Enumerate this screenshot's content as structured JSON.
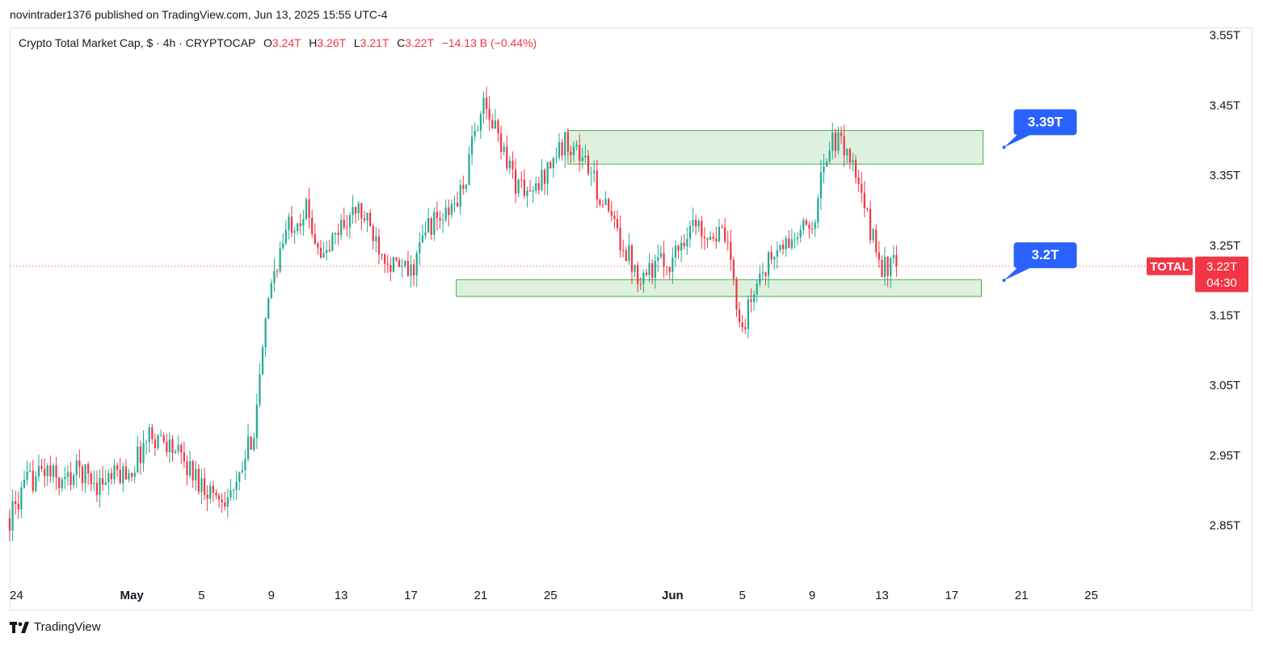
{
  "publisher_line": "novintrader1376 published on TradingView.com, Jun 13, 2025 15:55 UTC-4",
  "legend": {
    "symbol": "Crypto Total Market Cap, $ · 4h · CRYPTOCAP",
    "o_label": "O",
    "o_value": "3.24T",
    "h_label": "H",
    "h_value": "3.26T",
    "l_label": "L",
    "l_value": "3.21T",
    "c_label": "C",
    "c_value": "3.22T",
    "change": "−14.13 B (−0.44%)"
  },
  "footer": {
    "logo_icon": "tradingview-logo-icon",
    "brand": "TradingView"
  },
  "colors": {
    "up": "#22ab94",
    "down": "#f23645",
    "zone_fill": "#d8efd8",
    "zone_stroke": "#4caf50",
    "callout": "#2962ff"
  },
  "chart_data": {
    "type": "candlestick",
    "y_ticks": [
      "3.55T",
      "3.45T",
      "3.35T",
      "3.25T",
      "3.15T",
      "3.05T",
      "2.95T",
      "2.85T"
    ],
    "y_tick_values": [
      3.55,
      3.45,
      3.35,
      3.25,
      3.15,
      3.05,
      2.95,
      2.85
    ],
    "ylim": [
      2.77,
      3.56
    ],
    "x_ticks": [
      {
        "label": "24",
        "day": 0,
        "bold": false
      },
      {
        "label": "May",
        "day": 7,
        "bold": true
      },
      {
        "label": "5",
        "day": 11,
        "bold": false
      },
      {
        "label": "9",
        "day": 15,
        "bold": false
      },
      {
        "label": "13",
        "day": 19,
        "bold": false
      },
      {
        "label": "17",
        "day": 23,
        "bold": false
      },
      {
        "label": "21",
        "day": 27,
        "bold": false
      },
      {
        "label": "25",
        "day": 31,
        "bold": false
      },
      {
        "label": "Jun",
        "day": 38,
        "bold": true
      },
      {
        "label": "5",
        "day": 42,
        "bold": false
      },
      {
        "label": "9",
        "day": 46,
        "bold": false
      },
      {
        "label": "13",
        "day": 50,
        "bold": false
      },
      {
        "label": "17",
        "day": 54,
        "bold": false
      },
      {
        "label": "21",
        "day": 58,
        "bold": false
      },
      {
        "label": "25",
        "day": 62,
        "bold": false
      }
    ],
    "xlim": [
      0,
      68
    ],
    "candles_per_day": 6,
    "path_close": [
      [
        0,
        2.86
      ],
      [
        1,
        2.91
      ],
      [
        2,
        2.93
      ],
      [
        3,
        2.91
      ],
      [
        4,
        2.93
      ],
      [
        5,
        2.91
      ],
      [
        6,
        2.92
      ],
      [
        7,
        2.93
      ],
      [
        8,
        2.98
      ],
      [
        9,
        2.97
      ],
      [
        10,
        2.94
      ],
      [
        11,
        2.91
      ],
      [
        12,
        2.89
      ],
      [
        13,
        2.9
      ],
      [
        14,
        2.99
      ],
      [
        15,
        3.2
      ],
      [
        16,
        3.28
      ],
      [
        17,
        3.3
      ],
      [
        18,
        3.23
      ],
      [
        19,
        3.28
      ],
      [
        20,
        3.3
      ],
      [
        21,
        3.26
      ],
      [
        22,
        3.22
      ],
      [
        23,
        3.21
      ],
      [
        24,
        3.28
      ],
      [
        25,
        3.29
      ],
      [
        26,
        3.33
      ],
      [
        27,
        3.45
      ],
      [
        28,
        3.41
      ],
      [
        29,
        3.34
      ],
      [
        30,
        3.32
      ],
      [
        31,
        3.37
      ],
      [
        32,
        3.4
      ],
      [
        33,
        3.37
      ],
      [
        34,
        3.31
      ],
      [
        35,
        3.26
      ],
      [
        36,
        3.21
      ],
      [
        37,
        3.22
      ],
      [
        38,
        3.23
      ],
      [
        39,
        3.28
      ],
      [
        40,
        3.27
      ],
      [
        41,
        3.26
      ],
      [
        42,
        3.13
      ],
      [
        43,
        3.21
      ],
      [
        44,
        3.24
      ],
      [
        45,
        3.26
      ],
      [
        46,
        3.28
      ],
      [
        47,
        3.4
      ],
      [
        48,
        3.39
      ],
      [
        49,
        3.3
      ],
      [
        50,
        3.22
      ],
      [
        50.83,
        3.22
      ]
    ],
    "zones": [
      {
        "name": "resistance-zone",
        "day_start": 32.0,
        "day_end": 55.8,
        "low": 3.366,
        "high": 3.414
      },
      {
        "name": "support-zone",
        "day_start": 25.6,
        "day_end": 55.7,
        "low": 3.177,
        "high": 3.201
      }
    ],
    "callouts": [
      {
        "text": "3.39T",
        "value": 3.39,
        "day": 57.0
      },
      {
        "text": "3.2T",
        "value": 3.2,
        "day": 57.0
      }
    ],
    "last_price": {
      "value": 3.22,
      "symbol": "TOTAL",
      "price_label": "3.22T",
      "countdown": "04:30"
    }
  }
}
